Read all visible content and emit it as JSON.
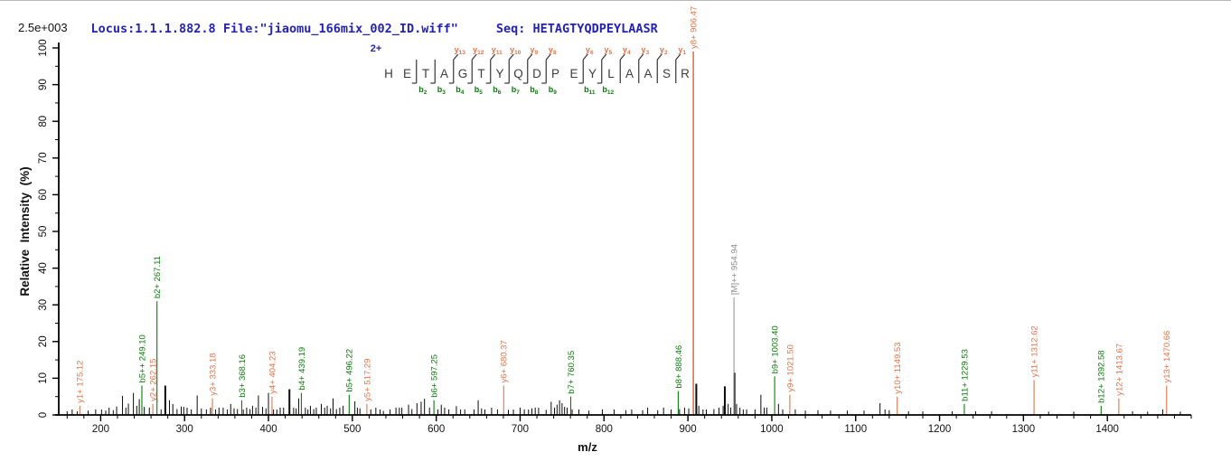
{
  "header": {
    "locus_file": "Locus:1.1.1.882.8 File:\"jiaomu_166mix_002_ID.wiff\"",
    "seq_text": "Seq: HETAGTYQDPEYLAASR",
    "intensity_scale": "2.5e+003"
  },
  "chart_data": {
    "type": "bar",
    "subtype": "ms2-peptide-fragmentation-spectrum",
    "title": "",
    "xlabel": "m/z",
    "ylabel": "Relative  Intensity  (%)",
    "xlim": [
      150,
      1500
    ],
    "ylim": [
      0,
      100
    ],
    "x_major_ticks": [
      200,
      300,
      400,
      500,
      600,
      700,
      800,
      900,
      1000,
      1100,
      1200,
      1300,
      1400
    ],
    "x_minor_step": 20,
    "y_major_step": 10,
    "y_minor_step": 5,
    "grid": false,
    "legend": "none",
    "colors": {
      "y_ion": "#e0744a",
      "b_ion": "#0b7c0b",
      "precursor": "#8c8c8c",
      "noise": "#0a0a0a",
      "axis": "#000000",
      "sequence": "#3c3c3c",
      "charge_blue": "#2323b0"
    },
    "precursor": {
      "charge_label": "2+"
    },
    "ladder": {
      "residues": [
        "H",
        "E",
        "T",
        "A",
        "G",
        "T",
        "Y",
        "Q",
        "D",
        "P",
        "E",
        "Y",
        "L",
        "A",
        "A",
        "S",
        "R"
      ],
      "cuts": [
        {
          "after": 1,
          "b": "b2"
        },
        {
          "after": 2,
          "b": "b3"
        },
        {
          "after": 3,
          "b": "b4",
          "y": "y13"
        },
        {
          "after": 4,
          "b": "b5",
          "y": "y12"
        },
        {
          "after": 5,
          "b": "b6",
          "y": "y11"
        },
        {
          "after": 6,
          "b": "b7",
          "y": "y10"
        },
        {
          "after": 7,
          "b": "b8",
          "y": "y9"
        },
        {
          "after": 8,
          "b": "b9",
          "y": "y8"
        },
        {
          "after": 10,
          "b": "b11",
          "y": "y6"
        },
        {
          "after": 11,
          "b": "b12",
          "y": "y5"
        },
        {
          "after": 12,
          "y": "y4"
        },
        {
          "after": 13,
          "y": "y3"
        },
        {
          "after": 14,
          "y": "y2"
        },
        {
          "after": 15,
          "y": "y1"
        }
      ]
    },
    "labeled_peaks": [
      {
        "ion": "y1+",
        "mz": 175.12,
        "intensity": 2.5,
        "series": "y",
        "label": "y1+ 175.12"
      },
      {
        "ion": "b5++",
        "mz": 249.1,
        "intensity": 8,
        "series": "b",
        "label": "b5++ 249.10"
      },
      {
        "ion": "y2+",
        "mz": 262.15,
        "intensity": 3,
        "series": "y",
        "label": "y2+ 262.15"
      },
      {
        "ion": "b2+",
        "mz": 267.11,
        "intensity": 31,
        "series": "b",
        "label": "b2+ 267.11"
      },
      {
        "ion": "y3+",
        "mz": 333.18,
        "intensity": 4.5,
        "series": "y",
        "label": "y3+ 333.18"
      },
      {
        "ion": "b3+",
        "mz": 368.16,
        "intensity": 4,
        "series": "b",
        "label": "b3+ 368.16"
      },
      {
        "ion": "y4+",
        "mz": 404.23,
        "intensity": 5,
        "series": "y",
        "label": "y4+ 404.23"
      },
      {
        "ion": "b4+",
        "mz": 439.19,
        "intensity": 6,
        "series": "b",
        "label": "b4+ 439.19"
      },
      {
        "ion": "b5+",
        "mz": 496.22,
        "intensity": 5.5,
        "series": "b",
        "label": "b5+ 496.22"
      },
      {
        "ion": "y5+",
        "mz": 517.29,
        "intensity": 3,
        "series": "y",
        "label": "y5+ 517.29"
      },
      {
        "ion": "b6+",
        "mz": 597.25,
        "intensity": 4,
        "series": "b",
        "label": "b6+ 597.25"
      },
      {
        "ion": "y6+",
        "mz": 680.37,
        "intensity": 8,
        "series": "y",
        "label": "y6+ 680.37"
      },
      {
        "ion": "b7+",
        "mz": 760.35,
        "intensity": 5,
        "series": "b",
        "label": "b7+ 760.35"
      },
      {
        "ion": "b8+",
        "mz": 888.46,
        "intensity": 6.5,
        "series": "b",
        "label": "b8+ 888.46"
      },
      {
        "ion": "y8+",
        "mz": 906.47,
        "intensity": 99,
        "series": "y",
        "label": "y8+ 906.47"
      },
      {
        "ion": "[M]++",
        "mz": 954.94,
        "intensity": 32,
        "series": "M",
        "label": "[M]++ 954.94"
      },
      {
        "ion": "b9+",
        "mz": 1003.4,
        "intensity": 10.5,
        "series": "b",
        "label": "b9+ 1003.40"
      },
      {
        "ion": "y9+",
        "mz": 1021.5,
        "intensity": 5.5,
        "series": "y",
        "label": "y9+ 1021.50"
      },
      {
        "ion": "y10+",
        "mz": 1149.53,
        "intensity": 5,
        "series": "y",
        "label": "y10+ 1149.53"
      },
      {
        "ion": "b11+",
        "mz": 1229.53,
        "intensity": 3,
        "series": "b",
        "label": "b11+ 1229.53"
      },
      {
        "ion": "y11+",
        "mz": 1312.62,
        "intensity": 9.5,
        "series": "y",
        "label": "y11+ 1312.62"
      },
      {
        "ion": "b12+",
        "mz": 1392.58,
        "intensity": 2.5,
        "series": "b",
        "label": "b12+ 1392.58"
      },
      {
        "ion": "y12+",
        "mz": 1413.67,
        "intensity": 4.5,
        "series": "y",
        "label": "y12+ 1413.67"
      },
      {
        "ion": "y13+",
        "mz": 1470.66,
        "intensity": 8,
        "series": "y",
        "label": "y13+ 1470.66"
      }
    ],
    "unlabeled_peaks": [
      [
        160,
        1
      ],
      [
        166,
        1.5
      ],
      [
        172,
        1
      ],
      [
        185,
        1.2
      ],
      [
        194,
        1.5
      ],
      [
        201,
        1.5
      ],
      [
        206,
        1.2
      ],
      [
        210,
        2
      ],
      [
        215,
        1.3
      ],
      [
        219,
        2.3
      ],
      [
        226,
        5.2
      ],
      [
        230,
        2
      ],
      [
        233,
        3.1
      ],
      [
        239,
        6
      ],
      [
        243,
        2.5
      ],
      [
        246,
        4.3
      ],
      [
        252,
        2.2
      ],
      [
        258,
        2
      ],
      [
        272,
        1.5
      ],
      [
        277,
        8
      ],
      [
        282,
        4
      ],
      [
        286,
        3
      ],
      [
        291,
        1.6
      ],
      [
        296,
        2.3
      ],
      [
        299,
        2.2
      ],
      [
        303,
        2
      ],
      [
        308,
        1.5
      ],
      [
        315,
        5.3
      ],
      [
        320,
        1.8
      ],
      [
        326,
        1.5
      ],
      [
        331,
        2
      ],
      [
        337,
        1.5
      ],
      [
        341,
        2
      ],
      [
        346,
        2
      ],
      [
        351,
        1.5
      ],
      [
        355,
        3
      ],
      [
        359,
        1.8
      ],
      [
        363,
        1.6
      ],
      [
        370,
        1.5
      ],
      [
        374,
        2
      ],
      [
        378,
        1.6
      ],
      [
        381,
        2.5
      ],
      [
        385,
        2
      ],
      [
        388,
        5.3
      ],
      [
        393,
        2.2
      ],
      [
        397,
        1.8
      ],
      [
        400,
        6
      ],
      [
        406,
        1.5
      ],
      [
        410,
        1.5
      ],
      [
        414,
        2
      ],
      [
        418,
        2
      ],
      [
        425,
        7
      ],
      [
        430,
        2
      ],
      [
        433,
        1.8
      ],
      [
        436,
        4.5
      ],
      [
        444,
        2
      ],
      [
        447,
        1.5
      ],
      [
        450,
        2.5
      ],
      [
        454,
        1.6
      ],
      [
        457,
        2
      ],
      [
        463,
        3
      ],
      [
        467,
        2
      ],
      [
        470,
        2.5
      ],
      [
        474,
        1.8
      ],
      [
        477,
        4.5
      ],
      [
        481,
        1.6
      ],
      [
        485,
        2
      ],
      [
        489,
        2.5
      ],
      [
        503,
        3.7
      ],
      [
        506,
        2
      ],
      [
        509,
        1.8
      ],
      [
        522,
        1.5
      ],
      [
        528,
        2
      ],
      [
        533,
        1.5
      ],
      [
        537,
        1.1
      ],
      [
        545,
        1.5
      ],
      [
        552,
        2
      ],
      [
        556,
        2
      ],
      [
        559,
        2
      ],
      [
        567,
        2.8
      ],
      [
        571,
        1.6
      ],
      [
        577,
        3.2
      ],
      [
        582,
        3.6
      ],
      [
        586,
        4.4
      ],
      [
        592,
        2
      ],
      [
        602,
        1.5
      ],
      [
        606,
        2.8
      ],
      [
        610,
        2
      ],
      [
        615,
        1.5
      ],
      [
        624,
        2.4
      ],
      [
        629,
        1.5
      ],
      [
        634,
        1.5
      ],
      [
        645,
        1.5
      ],
      [
        650,
        4
      ],
      [
        654,
        1.8
      ],
      [
        658,
        1.5
      ],
      [
        666,
        2
      ],
      [
        673,
        1.5
      ],
      [
        686,
        1.4
      ],
      [
        692,
        1.5
      ],
      [
        700,
        2
      ],
      [
        705,
        1.5
      ],
      [
        710,
        1.5
      ],
      [
        714,
        1.8
      ],
      [
        718,
        2
      ],
      [
        722,
        2
      ],
      [
        731,
        1.4
      ],
      [
        737,
        3.6
      ],
      [
        741,
        2
      ],
      [
        744,
        2.8
      ],
      [
        747,
        4
      ],
      [
        750,
        3.2
      ],
      [
        753,
        2.2
      ],
      [
        756,
        2
      ],
      [
        762,
        1.5
      ],
      [
        770,
        1.5
      ],
      [
        782,
        1.2
      ],
      [
        798,
        1.5
      ],
      [
        812,
        1.5
      ],
      [
        826,
        1.3
      ],
      [
        833,
        1.5
      ],
      [
        846,
        1.3
      ],
      [
        852,
        2
      ],
      [
        864,
        1.3
      ],
      [
        871,
        2
      ],
      [
        880,
        1.5
      ],
      [
        890,
        1.6
      ],
      [
        896,
        2
      ],
      [
        901,
        1.8
      ],
      [
        910,
        8.5
      ],
      [
        913,
        2.5
      ],
      [
        918,
        1.5
      ],
      [
        922,
        1.5
      ],
      [
        931,
        1.6
      ],
      [
        937,
        2
      ],
      [
        942,
        2.5
      ],
      [
        944,
        7.8
      ],
      [
        948,
        3
      ],
      [
        951,
        2
      ],
      [
        955.5,
        11.5
      ],
      [
        958,
        3
      ],
      [
        962,
        2
      ],
      [
        966,
        1.5
      ],
      [
        970,
        1.5
      ],
      [
        980,
        1.5
      ],
      [
        987,
        5.5
      ],
      [
        991,
        2
      ],
      [
        994,
        2
      ],
      [
        1008,
        3
      ],
      [
        1013,
        1.5
      ],
      [
        1028,
        1.5
      ],
      [
        1040,
        1.2
      ],
      [
        1055,
        1.3
      ],
      [
        1070,
        1.2
      ],
      [
        1090,
        1.2
      ],
      [
        1110,
        1.2
      ],
      [
        1129,
        3.2
      ],
      [
        1135,
        1.5
      ],
      [
        1140,
        1.3
      ],
      [
        1163,
        1
      ],
      [
        1180,
        1
      ],
      [
        1215,
        1
      ],
      [
        1243,
        1
      ],
      [
        1262,
        1
      ],
      [
        1330,
        0.9
      ],
      [
        1360,
        0.9
      ],
      [
        1430,
        1
      ],
      [
        1448,
        0.9
      ],
      [
        1466,
        1.5
      ],
      [
        1487,
        0.9
      ]
    ]
  }
}
